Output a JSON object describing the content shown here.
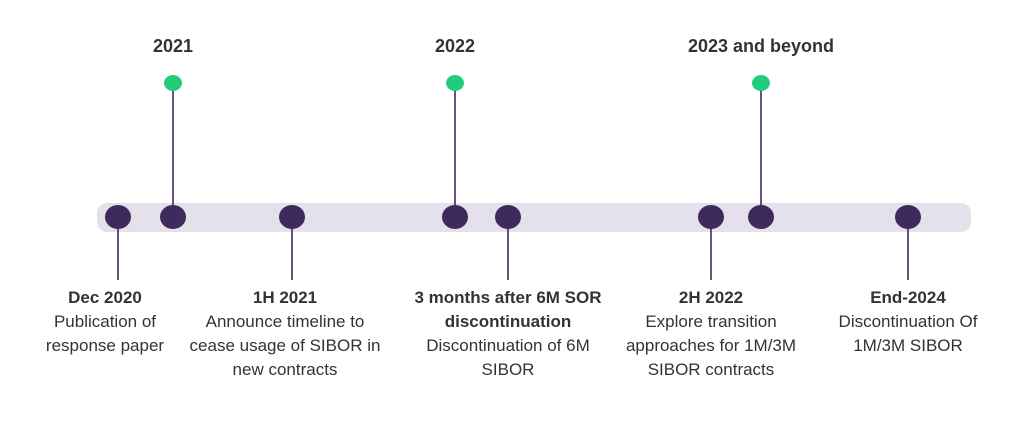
{
  "colors": {
    "track": "#e4e1ea",
    "dot": "#3f2a5c",
    "year_dot": "#22cc7a",
    "line": "#3f2a5c",
    "text": "#333333"
  },
  "years": [
    {
      "label": "2021"
    },
    {
      "label": "2022"
    },
    {
      "label": "2023 and beyond"
    }
  ],
  "milestones": [
    {
      "title": "Dec 2020",
      "description": "Publication of response paper"
    },
    {
      "title": "1H 2021",
      "description": "Announce timeline to cease usage of SIBOR in new contracts"
    },
    {
      "title": "3 months after 6M SOR discontinuation",
      "description": "Discontinuation of 6M SIBOR"
    },
    {
      "title": "2H 2022",
      "description": "Explore transition approaches for 1M/3M SIBOR contracts"
    },
    {
      "title": "End-2024",
      "description": "Discontinuation Of 1M/3M SIBOR"
    }
  ]
}
